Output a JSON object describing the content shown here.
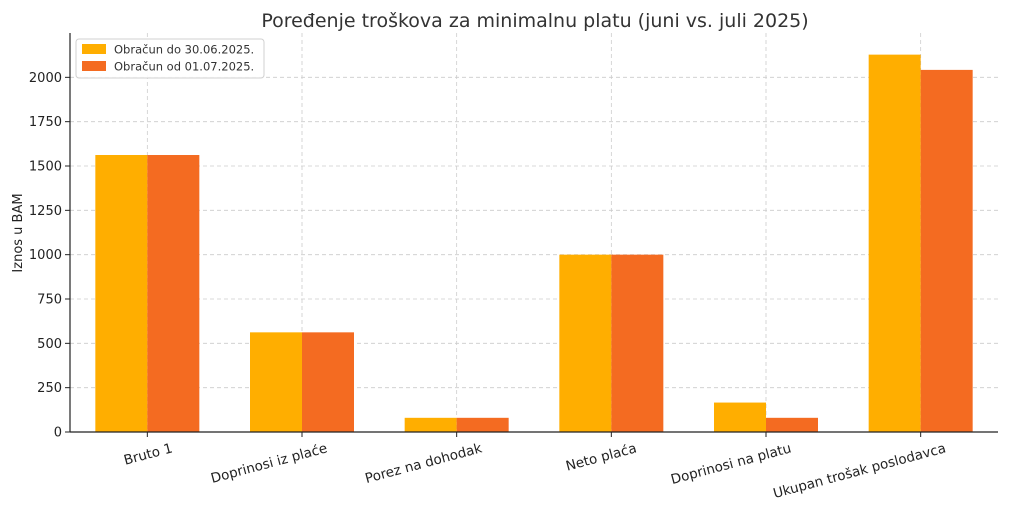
{
  "chart_data": {
    "type": "bar",
    "title": "Poređenje troškova za minimalnu platu (juni vs. juli 2025)",
    "xlabel": "",
    "ylabel": "Iznos u BAM",
    "ylim": [
      0,
      2250
    ],
    "yticks": [
      0,
      250,
      500,
      750,
      1000,
      1250,
      1500,
      1750,
      2000
    ],
    "grid": true,
    "legend_position": "top-left",
    "categories": [
      "Bruto 1",
      "Doprinosi iz plaće",
      "Porez na dohodak",
      "Neto plaća",
      "Doprinosi na platu",
      "Ukupan trošak poslodavca"
    ],
    "series": [
      {
        "name": "Obračun do 30.06.2025.",
        "color": "#FFAE00",
        "values": [
          1562,
          562,
          80,
          1000,
          166,
          2128
        ]
      },
      {
        "name": "Obračun od 01.07.2025.",
        "color": "#F46B21",
        "values": [
          1562,
          562,
          80,
          1000,
          80,
          2042
        ]
      }
    ]
  }
}
